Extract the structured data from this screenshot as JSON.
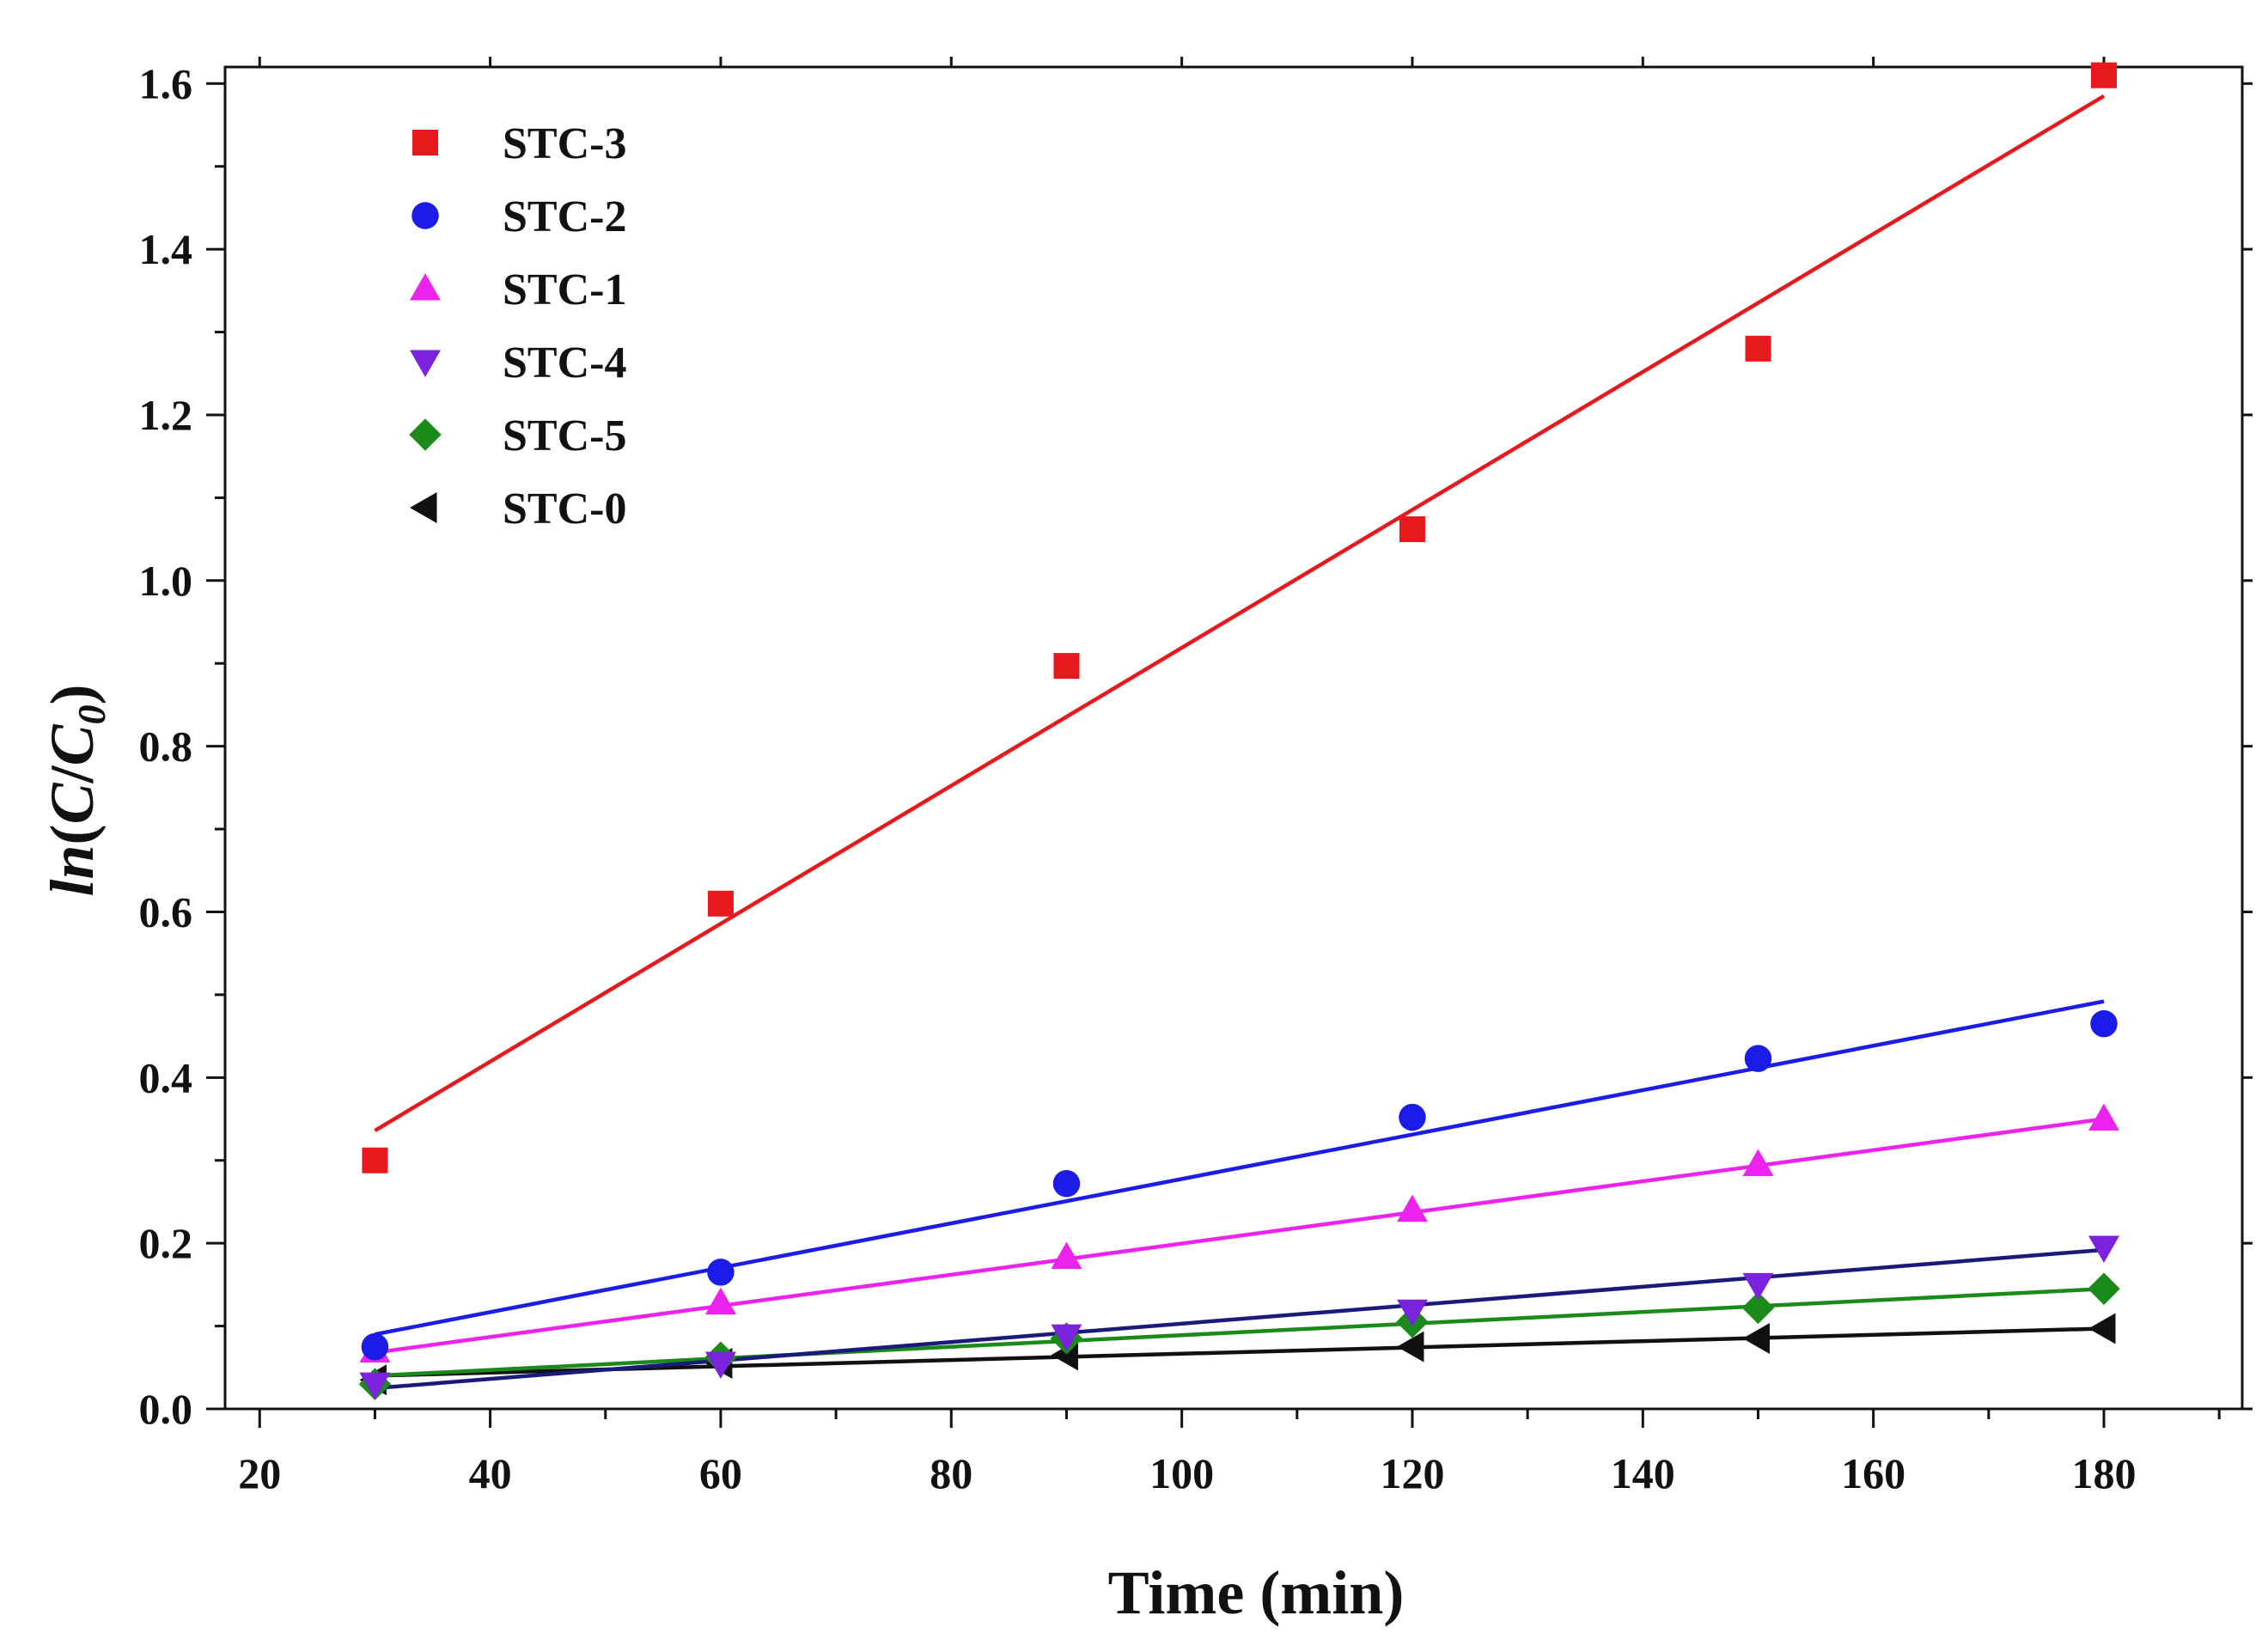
{
  "chart_data": {
    "type": "scatter",
    "xlabel": "Time (min)",
    "ylabel": {
      "prefix": "ln(",
      "c": "C",
      "slash": "/",
      "c0": "C",
      "sub": "0",
      "suffix": ")"
    },
    "xlim": [
      17,
      192
    ],
    "ylim": [
      0,
      1.62
    ],
    "x_ticks": [
      20,
      40,
      60,
      80,
      100,
      120,
      140,
      160,
      180
    ],
    "x_tick_labels": [
      "20",
      "40",
      "60",
      "80",
      "100",
      "120",
      "140",
      "160",
      "180"
    ],
    "y_ticks": [
      0,
      0.2,
      0.4,
      0.6,
      0.8,
      1.0,
      1.2,
      1.4,
      1.6
    ],
    "y_tick_labels": [
      "0.0",
      "0.2",
      "0.4",
      "0.6",
      "0.8",
      "1.0",
      "1.2",
      "1.4",
      "1.6"
    ],
    "legend_position": "top-left",
    "grid": false,
    "x": [
      30,
      60,
      90,
      120,
      150,
      180
    ],
    "series": [
      {
        "name": "STC-3",
        "marker": "square",
        "color": "#e8191c",
        "values": [
          0.3,
          0.61,
          0.897,
          1.062,
          1.28,
          1.61
        ],
        "fit": [
          0.336,
          1.585
        ]
      },
      {
        "name": "STC-2",
        "marker": "circle",
        "color": "#1c1ce8",
        "values": [
          0.075,
          0.165,
          0.272,
          0.352,
          0.423,
          0.465
        ],
        "fit": [
          0.09,
          0.492
        ]
      },
      {
        "name": "STC-1",
        "marker": "triangle-up",
        "color": "#ee22ee",
        "values": [
          0.07,
          0.128,
          0.183,
          0.24,
          0.295,
          0.35
        ],
        "fit": [
          0.068,
          0.35
        ]
      },
      {
        "name": "STC-4",
        "marker": "triangle-down",
        "color": "#7b22dd",
        "values": [
          0.03,
          0.055,
          0.088,
          0.118,
          0.15,
          0.195
        ],
        "fit": [
          0.025,
          0.192
        ]
      },
      {
        "name": "STC-5",
        "marker": "diamond",
        "color": "#1a8a1a",
        "values": [
          0.03,
          0.062,
          0.085,
          0.105,
          0.122,
          0.145
        ],
        "fit": [
          0.04,
          0.145
        ]
      },
      {
        "name": "STC-0",
        "marker": "triangle-left",
        "color": "#111111",
        "values": [
          0.035,
          0.055,
          0.065,
          0.075,
          0.085,
          0.097
        ],
        "fit": [
          0.04,
          0.097
        ]
      }
    ],
    "fit_line_colors": {
      "STC-4": "#1a1a7a"
    }
  }
}
